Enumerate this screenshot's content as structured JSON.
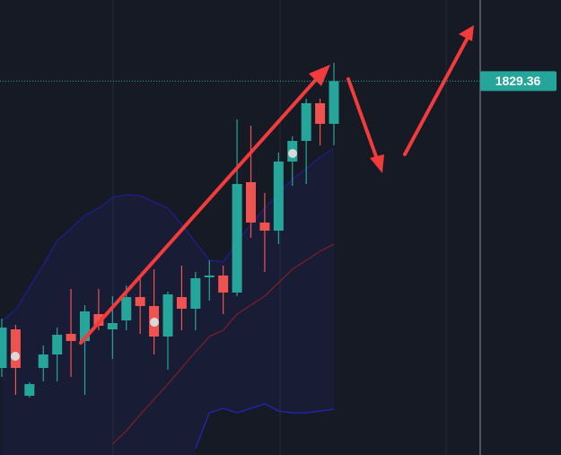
{
  "chart_data": {
    "type": "candlestick",
    "ylim": [
      1787.7,
      1838.4
    ],
    "up_color": "#26a69a",
    "down_color": "#ef5350",
    "open": [
      1797.4,
      1801.7,
      1794.3,
      1797.4,
      1798.9,
      1801.2,
      1800.4,
      1803.4,
      1801.7,
      1802.7,
      1805.3,
      1804.3,
      1800.9,
      1805.3,
      1804.0,
      1807.5,
      1807.7,
      1805.8,
      1818.1,
      1813.6,
      1812.7,
      1820.4,
      1822.7,
      1826.9,
      1824.6
    ],
    "high": [
      1802.9,
      1802.2,
      1795.8,
      1799.9,
      1801.9,
      1806.2,
      1804.4,
      1806.2,
      1805.4,
      1806.6,
      1807.4,
      1808.4,
      1805.9,
      1808.8,
      1808.1,
      1809.4,
      1808.8,
      1825.1,
      1824.4,
      1816.9,
      1821.4,
      1823.2,
      1827.4,
      1827.4,
      1831.4
    ],
    "low": [
      1796.4,
      1794.4,
      1794.1,
      1795.9,
      1795.9,
      1796.4,
      1794.4,
      1801.6,
      1798.4,
      1801.6,
      1801.2,
      1798.9,
      1797.2,
      1801.6,
      1801.6,
      1804.9,
      1803.4,
      1805.4,
      1811.9,
      1808.1,
      1811.2,
      1817.7,
      1817.9,
      1822.2,
      1822.2
    ],
    "close": [
      1801.9,
      1797.4,
      1795.6,
      1798.9,
      1801.1,
      1800.4,
      1803.7,
      1802.1,
      1802.4,
      1805.3,
      1804.3,
      1800.9,
      1805.6,
      1804.0,
      1807.4,
      1807.7,
      1805.8,
      1817.9,
      1813.6,
      1812.7,
      1820.4,
      1822.7,
      1826.9,
      1824.6,
      1829.36
    ],
    "bands": [
      {
        "color": "#1e1e8c",
        "values": [
          1802.6,
          1803.9,
          1806.4,
          1808.9,
          1811.6,
          1812.9,
          1814.4,
          1815.2,
          1816.4,
          1816.7,
          1816.6,
          1815.9,
          1815.2,
          1813.4,
          1811.4,
          1809.4,
          1809.2,
          1811.4,
          1813.4,
          1815.2,
          1816.9,
          1818.4,
          1819.6,
          1820.9,
          1821.9
        ]
      },
      {
        "color": "#7a1f2a",
        "values": [
          null,
          null,
          null,
          null,
          null,
          null,
          null,
          null,
          1788.9,
          1790.4,
          1792.2,
          1793.9,
          1795.6,
          1797.4,
          1799.2,
          1800.9,
          1801.6,
          1803.4,
          1804.4,
          1805.4,
          1806.9,
          1808.4,
          1809.4,
          1810.4,
          1811.2
        ]
      },
      {
        "color": "#2424b8",
        "values": [
          null,
          null,
          null,
          null,
          null,
          null,
          null,
          null,
          null,
          null,
          null,
          null,
          null,
          null,
          1788.4,
          1792.4,
          1792.9,
          1792.4,
          1792.9,
          1793.4,
          1792.6,
          1792.4,
          1792.4,
          1792.6,
          1792.8
        ]
      }
    ],
    "last_price": 1829.36,
    "last_price_color": "#26a69a"
  }
}
